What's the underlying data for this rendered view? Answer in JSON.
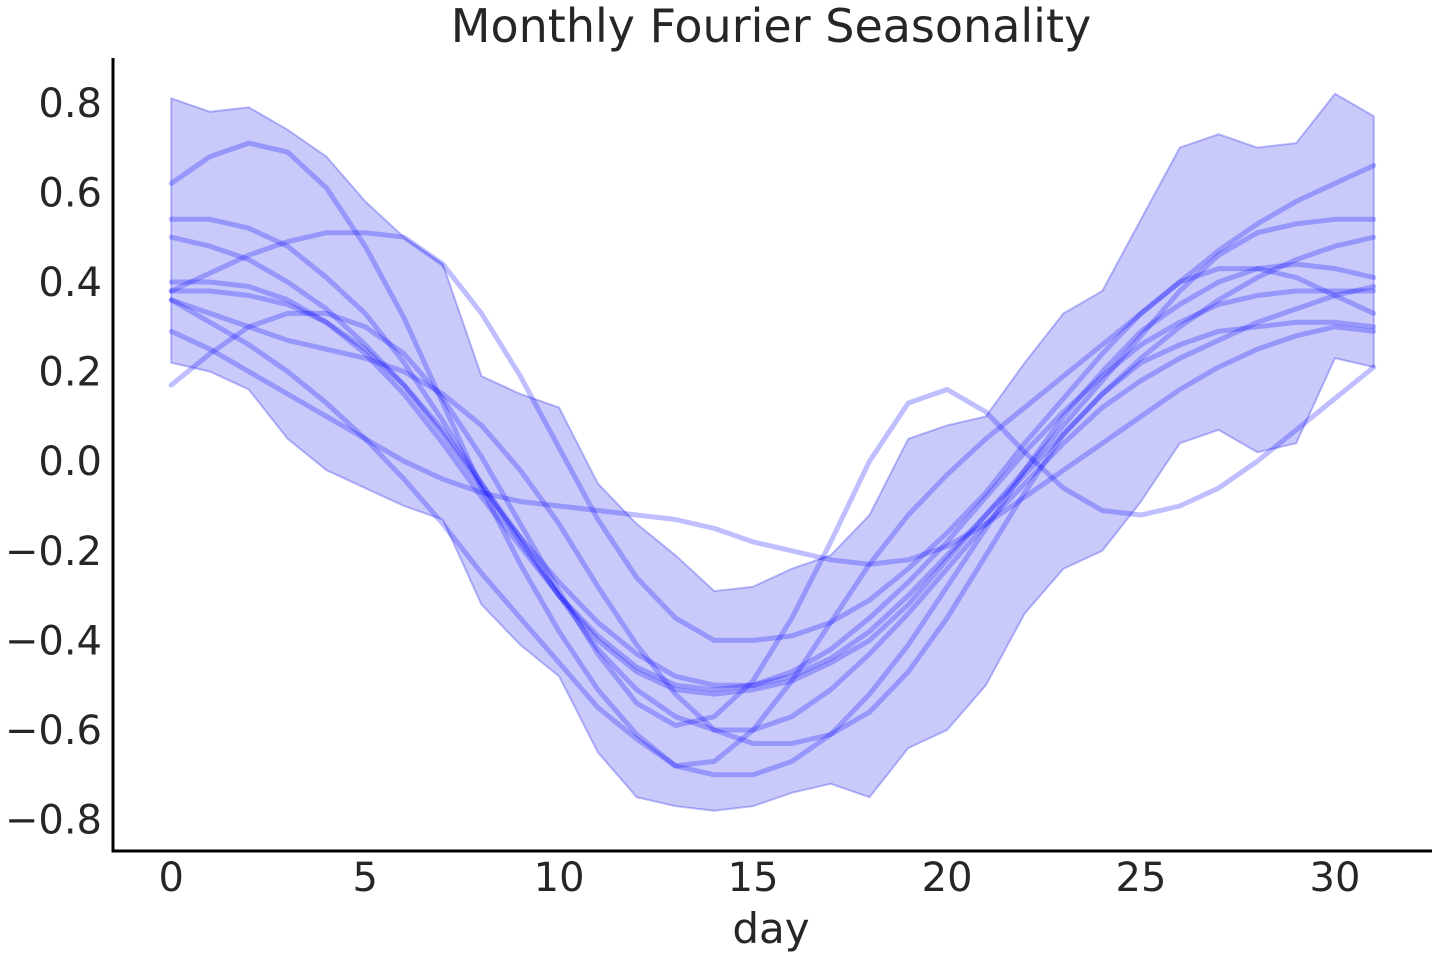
{
  "chart_data": {
    "type": "line",
    "title": "Monthly Fourier Seasonality",
    "xlabel": "day",
    "ylabel": "",
    "xlim": [
      -1.5,
      32.5
    ],
    "ylim": [
      -0.87,
      0.9
    ],
    "x_ticks": [
      0,
      5,
      10,
      15,
      20,
      25,
      30
    ],
    "x_tick_labels": [
      "0",
      "5",
      "10",
      "15",
      "20",
      "25",
      "30"
    ],
    "y_ticks": [
      0.8,
      0.6,
      0.4,
      0.2,
      0.0,
      -0.2,
      -0.4,
      -0.6,
      -0.8
    ],
    "y_tick_labels": [
      "0.8",
      "0.6",
      "0.4",
      "0.2",
      "0.0",
      "−0.2",
      "−0.4",
      "−0.6",
      "−0.8"
    ],
    "grid": false,
    "legend": "none",
    "series_color": "#0000ff",
    "band_color": "#0000e6",
    "x": [
      0,
      1,
      2,
      3,
      4,
      5,
      6,
      7,
      8,
      9,
      10,
      11,
      12,
      13,
      14,
      15,
      16,
      17,
      18,
      19,
      20,
      21,
      22,
      23,
      24,
      25,
      26,
      27,
      28,
      29,
      30,
      31
    ],
    "band": {
      "upper": [
        0.81,
        0.78,
        0.79,
        0.74,
        0.68,
        0.58,
        0.5,
        0.44,
        0.19,
        0.15,
        0.12,
        -0.05,
        -0.14,
        -0.21,
        -0.29,
        -0.28,
        -0.24,
        -0.21,
        -0.12,
        0.05,
        0.08,
        0.1,
        0.22,
        0.33,
        0.38,
        0.54,
        0.7,
        0.73,
        0.7,
        0.71,
        0.82,
        0.77
      ],
      "lower": [
        0.22,
        0.2,
        0.16,
        0.05,
        -0.02,
        -0.06,
        -0.1,
        -0.13,
        -0.32,
        -0.41,
        -0.48,
        -0.65,
        -0.75,
        -0.77,
        -0.78,
        -0.77,
        -0.74,
        -0.72,
        -0.75,
        -0.64,
        -0.6,
        -0.5,
        -0.34,
        -0.24,
        -0.2,
        -0.09,
        0.04,
        0.07,
        0.02,
        0.04,
        0.23,
        0.21
      ]
    },
    "series": [
      {
        "values": [
          0.62,
          0.68,
          0.71,
          0.69,
          0.61,
          0.48,
          0.32,
          0.13,
          -0.06,
          -0.23,
          -0.38,
          -0.51,
          -0.61,
          -0.68,
          -0.67,
          -0.6,
          -0.49,
          -0.36,
          -0.23,
          -0.12,
          -0.03,
          0.05,
          0.12,
          0.19,
          0.26,
          0.33,
          0.4,
          0.47,
          0.53,
          0.58,
          0.62,
          0.66
        ]
      },
      {
        "values": [
          0.54,
          0.54,
          0.52,
          0.48,
          0.41,
          0.33,
          0.22,
          0.09,
          -0.05,
          -0.18,
          -0.3,
          -0.4,
          -0.47,
          -0.51,
          -0.52,
          -0.51,
          -0.49,
          -0.45,
          -0.4,
          -0.32,
          -0.22,
          -0.12,
          -0.02,
          0.08,
          0.18,
          0.28,
          0.38,
          0.46,
          0.51,
          0.53,
          0.54,
          0.54
        ]
      },
      {
        "values": [
          0.5,
          0.48,
          0.45,
          0.4,
          0.34,
          0.26,
          0.17,
          0.06,
          -0.06,
          -0.17,
          -0.27,
          -0.36,
          -0.43,
          -0.48,
          -0.5,
          -0.5,
          -0.48,
          -0.44,
          -0.38,
          -0.3,
          -0.21,
          -0.12,
          -0.03,
          0.06,
          0.15,
          0.23,
          0.3,
          0.36,
          0.41,
          0.45,
          0.48,
          0.5
        ]
      },
      {
        "values": [
          0.4,
          0.4,
          0.39,
          0.36,
          0.31,
          0.24,
          0.15,
          0.04,
          -0.08,
          -0.19,
          -0.3,
          -0.39,
          -0.46,
          -0.5,
          -0.51,
          -0.5,
          -0.47,
          -0.42,
          -0.35,
          -0.27,
          -0.18,
          -0.08,
          0.02,
          0.11,
          0.19,
          0.26,
          0.31,
          0.35,
          0.37,
          0.38,
          0.38,
          0.38
        ]
      },
      {
        "values": [
          0.38,
          0.38,
          0.37,
          0.35,
          0.31,
          0.25,
          0.17,
          0.07,
          -0.05,
          -0.17,
          -0.3,
          -0.42,
          -0.51,
          -0.57,
          -0.6,
          -0.6,
          -0.57,
          -0.51,
          -0.43,
          -0.34,
          -0.24,
          -0.14,
          -0.05,
          0.04,
          0.12,
          0.18,
          0.23,
          0.27,
          0.31,
          0.34,
          0.37,
          0.39
        ]
      },
      {
        "values": [
          0.36,
          0.33,
          0.3,
          0.27,
          0.25,
          0.23,
          0.2,
          0.15,
          0.08,
          -0.02,
          -0.14,
          -0.28,
          -0.41,
          -0.52,
          -0.6,
          -0.63,
          -0.63,
          -0.61,
          -0.56,
          -0.47,
          -0.35,
          -0.21,
          -0.07,
          0.06,
          0.15,
          0.22,
          0.26,
          0.29,
          0.3,
          0.31,
          0.31,
          0.3
        ]
      },
      {
        "values": [
          0.36,
          0.31,
          0.26,
          0.2,
          0.13,
          0.05,
          -0.04,
          -0.14,
          -0.25,
          -0.35,
          -0.45,
          -0.55,
          -0.62,
          -0.68,
          -0.7,
          -0.7,
          -0.67,
          -0.61,
          -0.52,
          -0.41,
          -0.28,
          -0.15,
          -0.02,
          0.1,
          0.2,
          0.29,
          0.35,
          0.4,
          0.43,
          0.44,
          0.43,
          0.41
        ]
      },
      {
        "values": [
          0.29,
          0.25,
          0.2,
          0.15,
          0.1,
          0.05,
          0.0,
          -0.04,
          -0.07,
          -0.09,
          -0.1,
          -0.11,
          -0.12,
          -0.13,
          -0.15,
          -0.18,
          -0.2,
          -0.22,
          -0.23,
          -0.22,
          -0.19,
          -0.14,
          -0.08,
          -0.02,
          0.04,
          0.1,
          0.16,
          0.21,
          0.25,
          0.28,
          0.3,
          0.29
        ]
      },
      {
        "values": [
          0.17,
          0.24,
          0.3,
          0.33,
          0.33,
          0.3,
          0.24,
          0.14,
          0.01,
          -0.14,
          -0.29,
          -0.43,
          -0.54,
          -0.59,
          -0.57,
          -0.49,
          -0.35,
          -0.18,
          0.0,
          0.13,
          0.16,
          0.11,
          0.02,
          -0.06,
          -0.11,
          -0.12,
          -0.1,
          -0.06,
          0.0,
          0.07,
          0.14,
          0.21
        ]
      },
      {
        "values": [
          0.38,
          0.42,
          0.46,
          0.49,
          0.51,
          0.51,
          0.5,
          0.44,
          0.33,
          0.19,
          0.03,
          -0.13,
          -0.26,
          -0.35,
          -0.4,
          -0.4,
          -0.39,
          -0.36,
          -0.31,
          -0.24,
          -0.16,
          -0.07,
          0.04,
          0.14,
          0.24,
          0.33,
          0.4,
          0.43,
          0.43,
          0.41,
          0.37,
          0.33
        ]
      }
    ]
  }
}
